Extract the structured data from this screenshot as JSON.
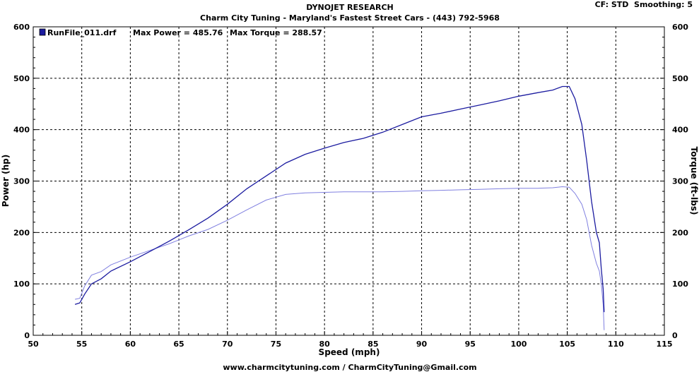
{
  "header": {
    "title": "DYNOJET RESEARCH",
    "subtitle": "Charm City Tuning - Maryland's Fastest Street Cars - (443) 792-5968",
    "settings": "CF: STD  Smoothing: 5",
    "footer": "www.charmcitytuning.com / CharmCityTuning@Gmail.com"
  },
  "legend": {
    "run": "RunFile_011.drf",
    "max_power": "Max Power = 485.76",
    "max_torque": "Max Torque = 288.57"
  },
  "colors": {
    "power": "#1c1ca0",
    "torque": "#8080e0",
    "grid": "#000000",
    "background": "#ffffff"
  },
  "chart_data": {
    "type": "line",
    "title": "DYNOJET RESEARCH",
    "xlabel": "Speed (mph)",
    "ylabel": "Power (hp)",
    "y2label": "Torque (ft-lbs)",
    "xlim": [
      50,
      115
    ],
    "ylim": [
      0,
      600
    ],
    "y2lim": [
      0,
      600
    ],
    "xticks": [
      50,
      55,
      60,
      65,
      70,
      75,
      80,
      85,
      90,
      95,
      100,
      105,
      110,
      115
    ],
    "yticks": [
      0,
      100,
      200,
      300,
      400,
      500,
      600
    ],
    "grid": true,
    "legend_position": "top-left",
    "series": [
      {
        "name": "Max Power = 485.76",
        "axis": "left",
        "x": [
          54.3,
          54.8,
          55.3,
          56,
          57,
          58,
          60,
          62,
          64,
          66,
          68,
          70,
          72,
          74,
          76,
          78,
          80,
          82,
          84,
          86,
          88,
          90,
          92,
          94,
          96,
          98,
          100,
          102,
          103.5,
          104.5,
          105.2,
          105.8,
          106.5,
          107,
          107.5,
          108,
          108.3,
          108.5,
          108.7,
          108.8
        ],
        "y": [
          60,
          63,
          80,
          100,
          110,
          125,
          143,
          163,
          183,
          205,
          228,
          255,
          285,
          310,
          335,
          352,
          364,
          375,
          383,
          395,
          410,
          425,
          432,
          440,
          448,
          456,
          465,
          472,
          477,
          484,
          484,
          460,
          410,
          340,
          260,
          200,
          180,
          130,
          90,
          45
        ]
      },
      {
        "name": "Max Torque = 288.57",
        "axis": "right",
        "x": [
          54.3,
          54.8,
          55.3,
          56,
          57,
          58,
          60,
          62,
          64,
          66,
          68,
          70,
          72,
          74,
          76,
          78,
          80,
          82,
          84,
          86,
          88,
          90,
          92,
          94,
          96,
          98,
          100,
          102,
          103.5,
          104.5,
          105.2,
          105.8,
          106.5,
          107,
          107.5,
          108,
          108.3,
          108.5,
          108.7,
          108.8
        ],
        "y": [
          70,
          72,
          96,
          117,
          124,
          137,
          152,
          165,
          178,
          193,
          206,
          224,
          244,
          263,
          274,
          277,
          278,
          279,
          279,
          279,
          280,
          281,
          282,
          283,
          284,
          285,
          286,
          286,
          287,
          289,
          288,
          276,
          255,
          225,
          175,
          140,
          125,
          100,
          60,
          10
        ]
      }
    ]
  }
}
